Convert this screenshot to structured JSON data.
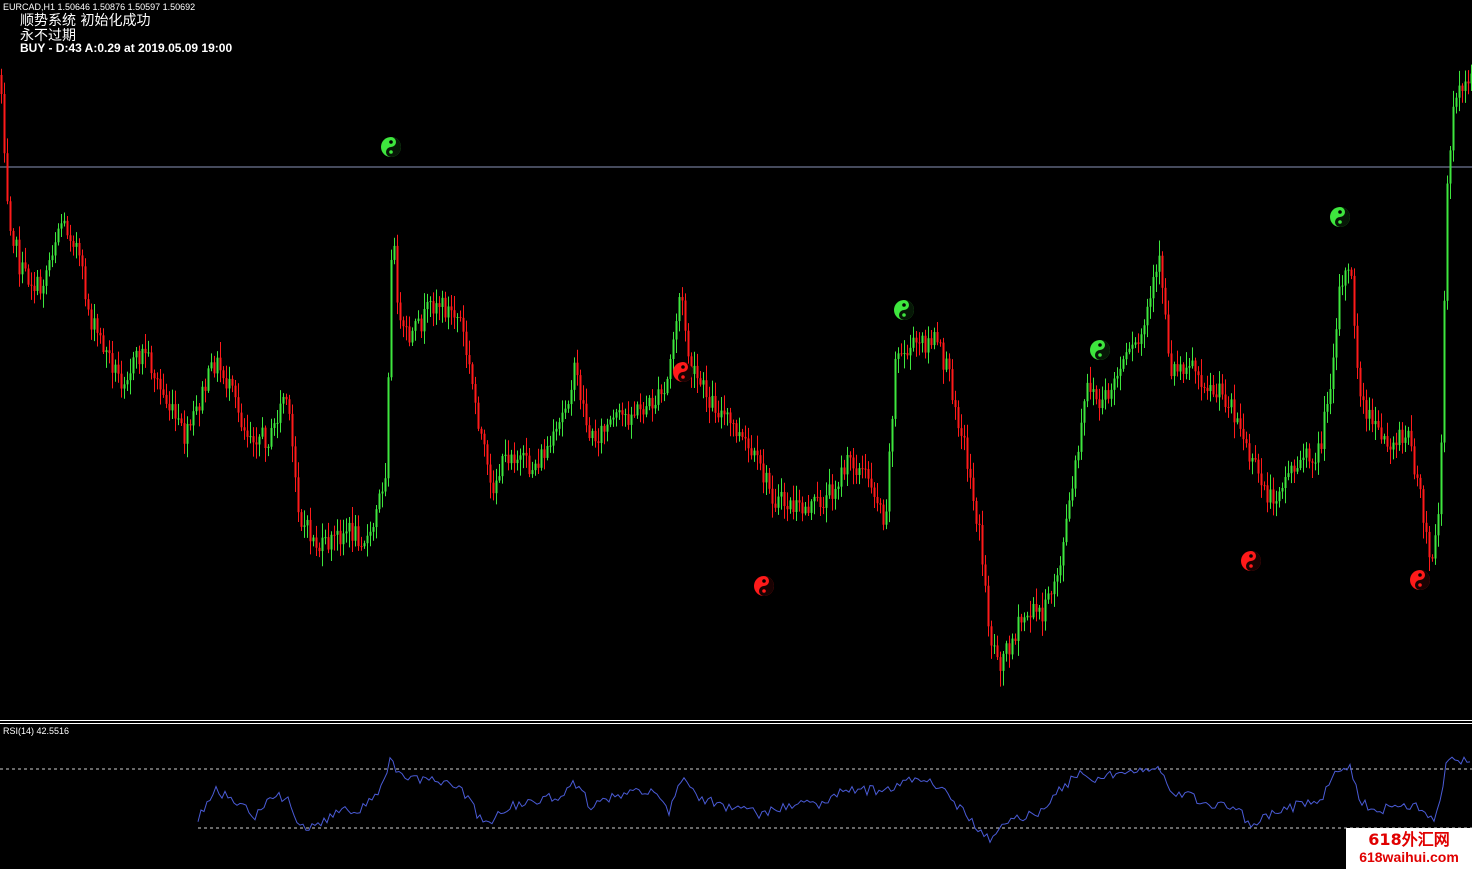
{
  "header": {
    "symbol_line": "EURCAD,H1  1.50646 1.50876 1.50597 1.50692",
    "system_line": "顺势系统 初始化成功",
    "expiry_line": "永不过期",
    "signal_line": "BUY - D:43 A:0.29  at 2019.05.09 19:00"
  },
  "rsi": {
    "label": "RSI(14) 42.5516"
  },
  "watermark": {
    "line1": "618外汇网",
    "line2": "618waihui.com"
  },
  "colors": {
    "background": "#000000",
    "bull_candle": "#3ee63e",
    "bear_candle": "#ff1a1a",
    "price_level_line": "#8a93b8",
    "rsi_line": "#4a5bd6",
    "rsi_level": "#d0d0d0",
    "separator": "#ffffff"
  },
  "icons": {
    "buy_signal": "yin-yang-green-icon",
    "sell_signal": "yin-yang-red-icon"
  }
}
